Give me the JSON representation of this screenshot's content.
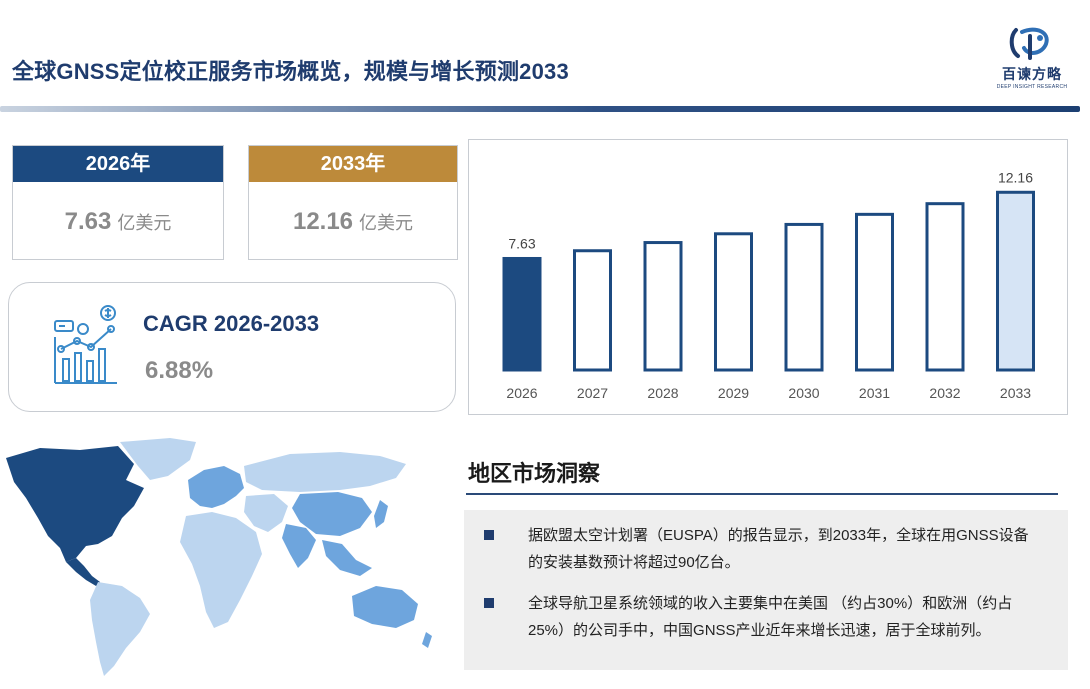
{
  "header": {
    "title": "全球GNSS定位校正服务市场概览，规模与增长预测2033"
  },
  "logo": {
    "name_cn": "百谏方略",
    "name_en": "DEEP INSIGHT RESEARCH"
  },
  "stats": {
    "start": {
      "year_label": "2026年",
      "value": "7.63",
      "unit": "亿美元"
    },
    "end": {
      "year_label": "2033年",
      "value": "12.16",
      "unit": "亿美元"
    }
  },
  "cagr": {
    "label": "CAGR 2026-2033",
    "value": "6.88%"
  },
  "chart_data": {
    "type": "bar",
    "categories": [
      "2026",
      "2027",
      "2028",
      "2029",
      "2030",
      "2031",
      "2032",
      "2033"
    ],
    "values": [
      7.63,
      8.16,
      8.72,
      9.32,
      9.96,
      10.65,
      11.38,
      12.16
    ],
    "labels": [
      "7.63",
      "",
      "",
      "",
      "",
      "",
      "",
      "12.16"
    ],
    "ylim": [
      0,
      13
    ],
    "grid": false,
    "colors": {
      "first": "#1c4a80",
      "outline": "#1c4a80",
      "last": "#d6e4f5"
    }
  },
  "insights": {
    "title": "地区市场洞察",
    "items": [
      "据欧盟太空计划署（EUSPA）的报告显示，到2033年，全球在用GNSS设备的安装基数预计将超过90亿台。",
      "全球导航卫星系统领域的收入主要集中在美国 （约占30%）和欧洲（约占25%）的公司手中，中国GNSS产业近年来增长迅速，居于全球前列。"
    ]
  },
  "colors": {
    "primary": "#1c4a80",
    "gold": "#bd8a3a",
    "grey_text": "#8a8a8a"
  }
}
